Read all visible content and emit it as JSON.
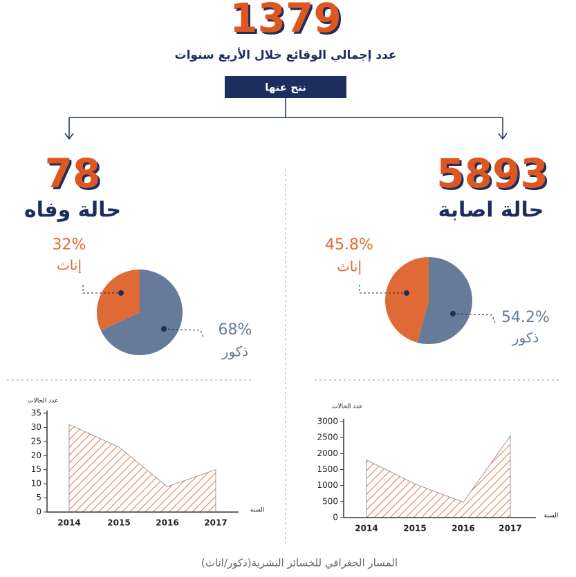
{
  "header": {
    "total": 1379,
    "subtitle": "عدد إجمالي الوقائع خلال الأربع سنوات",
    "result_label": "نتج عنها"
  },
  "deaths": {
    "count": 78,
    "label": "حالة وفاه"
  },
  "injuries": {
    "count": 5893,
    "label": "حالة اصابة"
  },
  "chart_data": [
    {
      "type": "pie",
      "categories": [
        "إناث",
        "ذكور"
      ],
      "values": [
        32,
        68
      ],
      "value_labels": [
        "32%",
        "68%"
      ],
      "colors": [
        "#e06a35",
        "#667a99"
      ]
    },
    {
      "type": "pie",
      "categories": [
        "إناث",
        "ذكور"
      ],
      "values": [
        45.8,
        54.2
      ],
      "value_labels": [
        "45.8%",
        "54.2%"
      ],
      "colors": [
        "#e06a35",
        "#667a99"
      ]
    },
    {
      "type": "area",
      "y_label": "عدد الحالات",
      "x_label": "السنة",
      "categories": [
        "2014",
        "2015",
        "2016",
        "2017"
      ],
      "values": [
        31,
        23,
        9,
        15
      ],
      "ylim": [
        0,
        35
      ],
      "yticks": [
        0,
        5,
        10,
        15,
        20,
        25,
        30,
        35
      ],
      "color": "#e8733a"
    },
    {
      "type": "area",
      "y_label": "عدد الحالات",
      "x_label": "السنة",
      "categories": [
        "2014",
        "2015",
        "2016",
        "2017"
      ],
      "values": [
        1800,
        1050,
        480,
        2550
      ],
      "ylim": [
        0,
        3000
      ],
      "yticks": [
        0,
        500,
        1000,
        1500,
        2000,
        2500,
        3000
      ],
      "color": "#e8733a"
    }
  ],
  "footer": "المسار الجغرافي للخسائر البشرية(ذكور/اناث)"
}
